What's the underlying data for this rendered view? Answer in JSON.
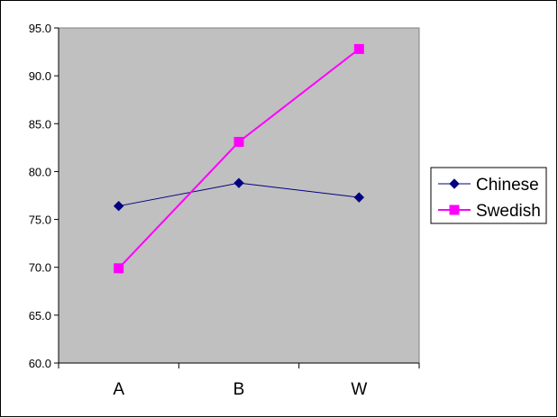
{
  "chart_data": {
    "type": "line",
    "title": "",
    "xlabel": "",
    "ylabel": "",
    "categories": [
      "A",
      "B",
      "W"
    ],
    "ylim": [
      60.0,
      95.0
    ],
    "ytick_step": 5.0,
    "ytick_labels": [
      "60.0",
      "65.0",
      "70.0",
      "75.0",
      "80.0",
      "85.0",
      "90.0",
      "95.0"
    ],
    "grid": false,
    "plot_background": "#c0c0c0",
    "legend_position": "right",
    "series": [
      {
        "name": "Chinese",
        "values": [
          76.4,
          78.8,
          77.3
        ],
        "color": "#000080",
        "marker": "diamond"
      },
      {
        "name": "Swedish",
        "values": [
          69.9,
          83.1,
          92.8
        ],
        "color": "#ff00ff",
        "marker": "square"
      }
    ]
  }
}
